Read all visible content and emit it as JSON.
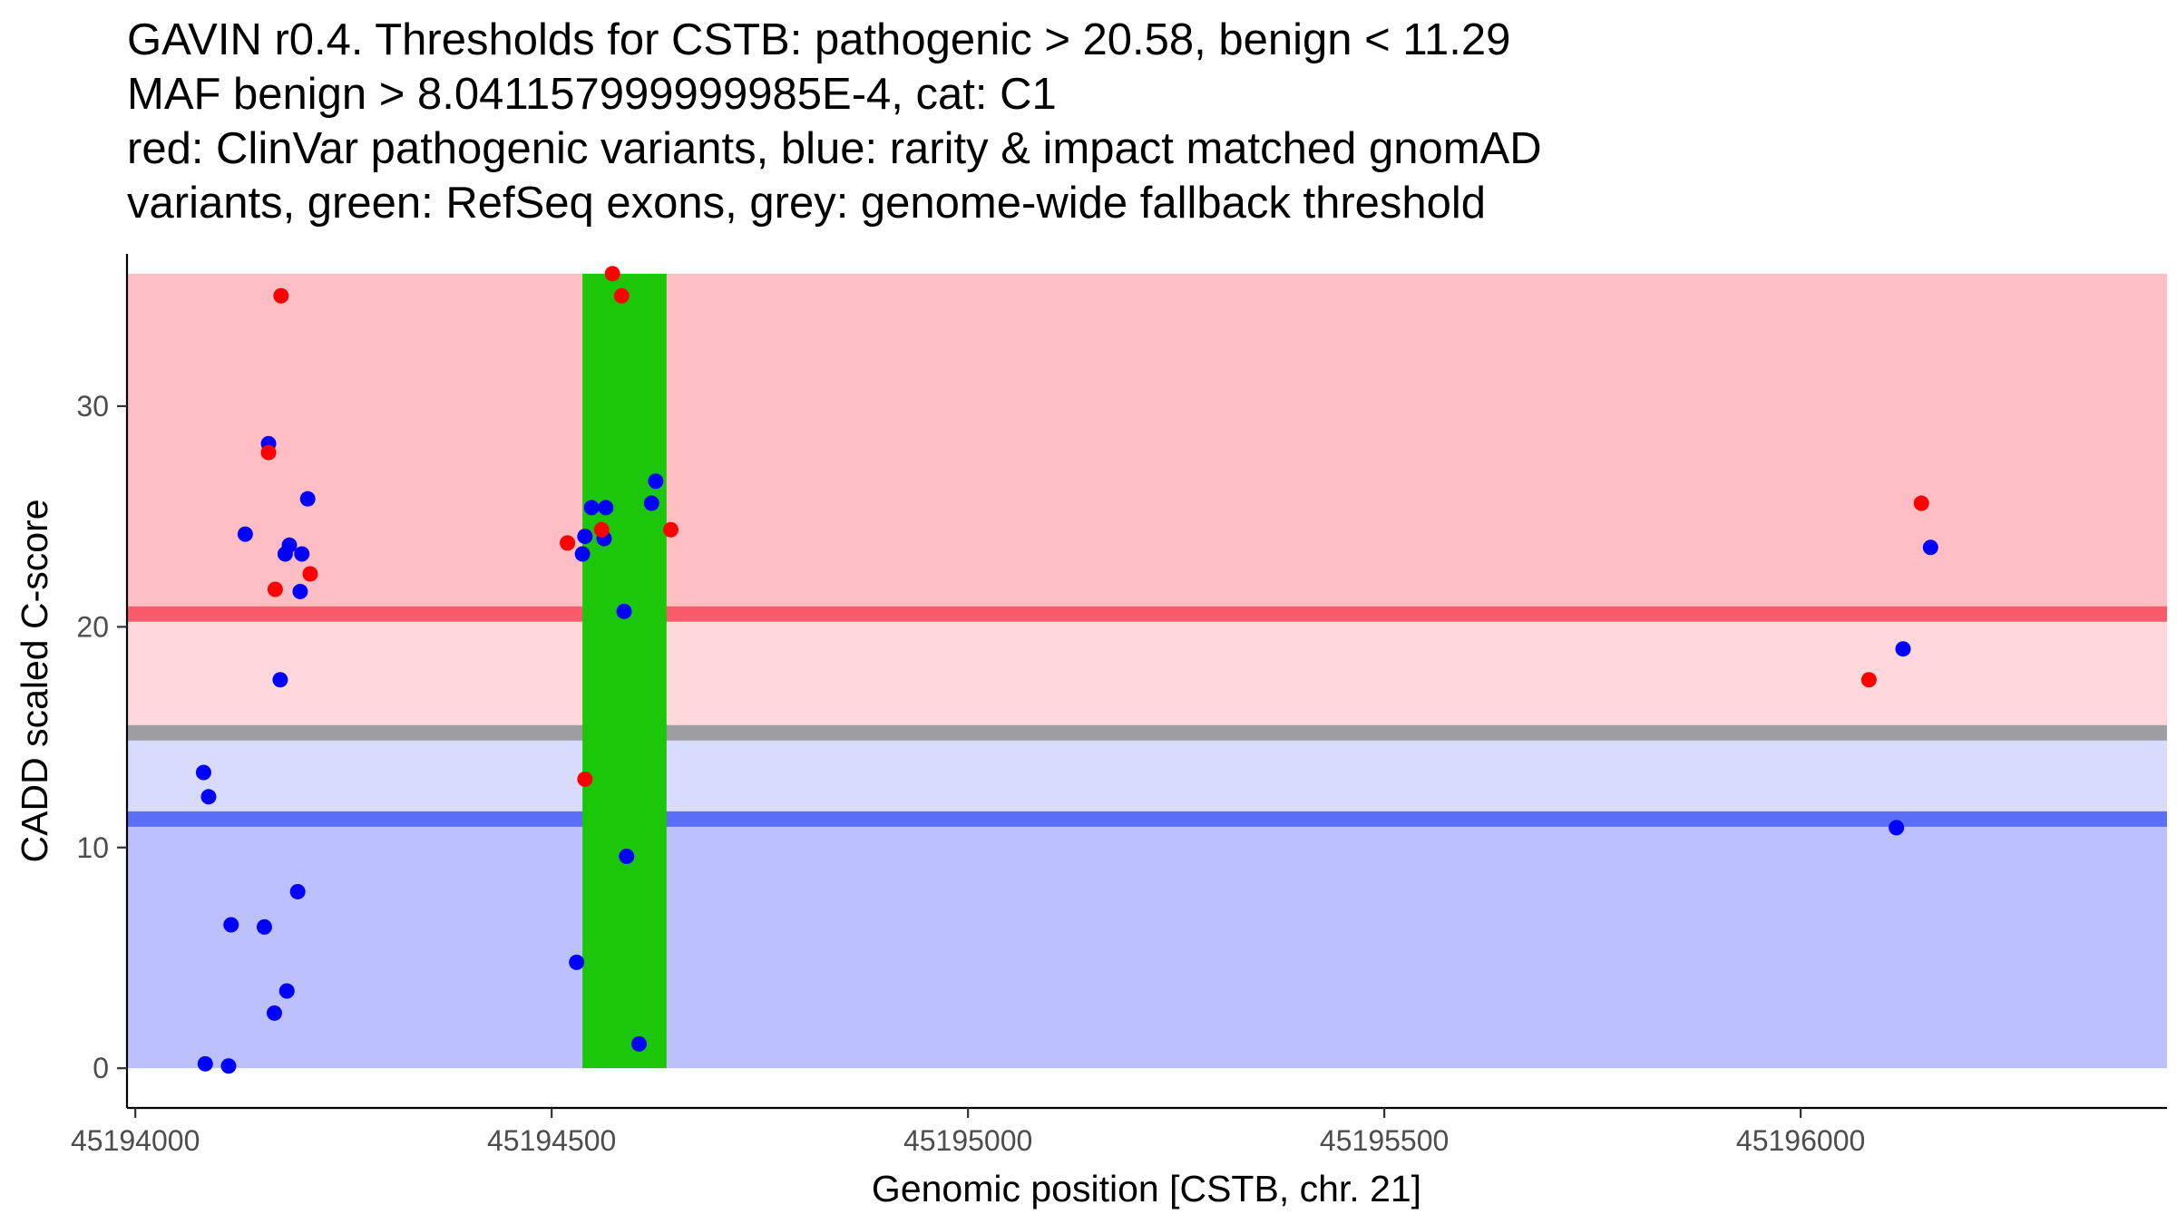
{
  "chart_data": {
    "type": "scatter",
    "title_lines": [
      "GAVIN r0.4. Thresholds for CSTB: pathogenic > 20.58, benign < 11.29",
      "MAF benign > 8.041157999999985E-4, cat: C1",
      "red: ClinVar pathogenic variants, blue: rarity & impact matched gnomAD",
      "variants, green: RefSeq exons, grey: genome-wide fallback threshold"
    ],
    "xlabel": "Genomic position [CSTB, chr. 21]",
    "ylabel": "CADD scaled C-score",
    "xlim": [
      45193990,
      45196440
    ],
    "ylim": [
      -1.8,
      36.9
    ],
    "x_ticks": [
      45194000,
      45194500,
      45195000,
      45195500,
      45196000
    ],
    "y_ticks": [
      0,
      10,
      20,
      30
    ],
    "regions": [
      {
        "name": "pathogenic-zone",
        "ymin": 20.58,
        "ymax": 36,
        "color": "#ffbec3"
      },
      {
        "name": "pathogenic-to-fallback-zone",
        "ymin": 15.2,
        "ymax": 20.58,
        "color": "#ffd8dc"
      },
      {
        "name": "fallback-to-benign-zone",
        "ymin": 11.29,
        "ymax": 15.2,
        "color": "#d8dafe"
      },
      {
        "name": "benign-zone",
        "ymin": 0,
        "ymax": 11.29,
        "color": "#bcc0fc"
      }
    ],
    "threshold_lines": [
      {
        "name": "pathogenic-threshold-line",
        "y": 20.58,
        "color": "#fa5c6b"
      },
      {
        "name": "fallback-threshold-line",
        "y": 15.2,
        "color": "#9e9ea2"
      },
      {
        "name": "benign-threshold-line",
        "y": 11.29,
        "color": "#5a6ef8"
      }
    ],
    "exons": [
      {
        "start": 45194537,
        "end": 45194638,
        "ymin": 0,
        "ymax": 36,
        "color": "#1cc709"
      }
    ],
    "series": [
      {
        "name": "gnomAD variants",
        "color": "#0000ff",
        "points": [
          [
            45194082,
            13.4
          ],
          [
            45194088,
            12.3
          ],
          [
            45194084,
            0.2
          ],
          [
            45194112,
            0.1
          ],
          [
            45194115,
            6.5
          ],
          [
            45194132,
            24.2
          ],
          [
            45194155,
            6.4
          ],
          [
            45194160,
            28.3
          ],
          [
            45194167,
            2.5
          ],
          [
            45194174,
            17.6
          ],
          [
            45194180,
            23.3
          ],
          [
            45194182,
            3.5
          ],
          [
            45194185,
            23.7
          ],
          [
            45194195,
            8.0
          ],
          [
            45194198,
            21.6
          ],
          [
            45194200,
            23.3
          ],
          [
            45194207,
            25.8
          ],
          [
            45194530,
            4.8
          ],
          [
            45194537,
            23.3
          ],
          [
            45194540,
            24.1
          ],
          [
            45194548,
            25.4
          ],
          [
            45194563,
            24.0
          ],
          [
            45194565,
            25.4
          ],
          [
            45194587,
            20.7
          ],
          [
            45194590,
            9.6
          ],
          [
            45194605,
            1.1
          ],
          [
            45194620,
            25.6
          ],
          [
            45194625,
            26.6
          ],
          [
            45196115,
            10.9
          ],
          [
            45196123,
            19.0
          ],
          [
            45196156,
            23.6
          ]
        ]
      },
      {
        "name": "ClinVar pathogenic variants",
        "color": "#ff0000",
        "points": [
          [
            45194160,
            27.9
          ],
          [
            45194168,
            21.7
          ],
          [
            45194175,
            35.0
          ],
          [
            45194210,
            22.4
          ],
          [
            45194519,
            23.8
          ],
          [
            45194540,
            13.1
          ],
          [
            45194560,
            24.4
          ],
          [
            45194573,
            36.0
          ],
          [
            45194584,
            35.0
          ],
          [
            45194643,
            24.4
          ],
          [
            45196082,
            17.6
          ],
          [
            45196145,
            25.6
          ]
        ]
      }
    ]
  }
}
